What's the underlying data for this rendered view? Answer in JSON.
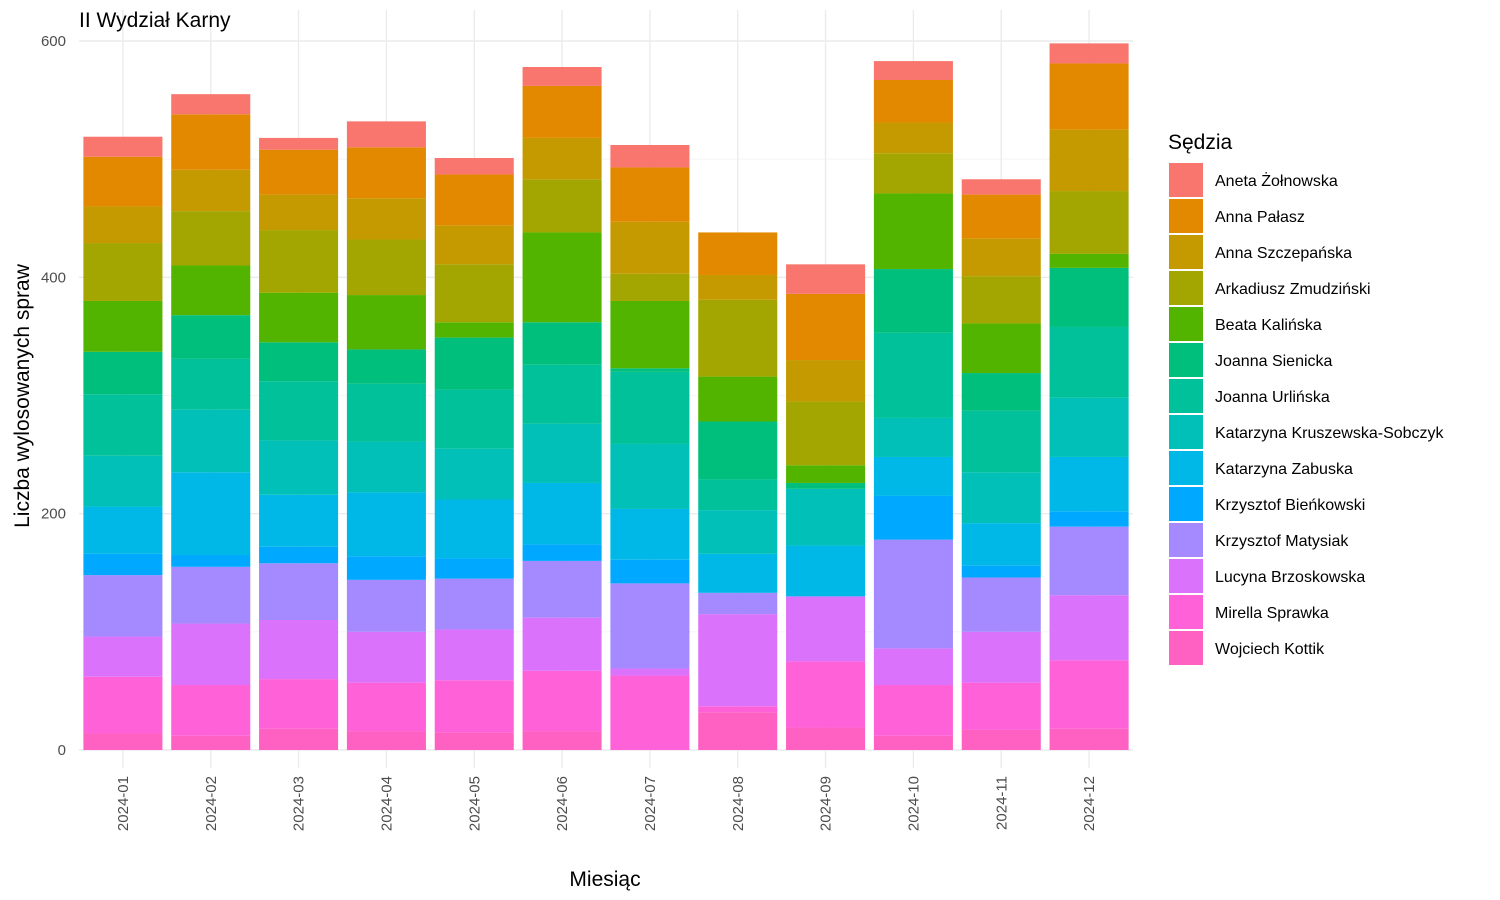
{
  "chart_data": {
    "type": "bar",
    "stacked": true,
    "title": "II Wydział Karny",
    "xlabel": "Miesiąc",
    "ylabel": "Liczba wylosowanych spraw",
    "ylim": [
      0,
      600
    ],
    "yticks": [
      0,
      200,
      400,
      600
    ],
    "grid": true,
    "legend_title": "Sędzia",
    "legend_position": "right",
    "categories": [
      "2024-01",
      "2024-02",
      "2024-03",
      "2024-04",
      "2024-05",
      "2024-06",
      "2024-07",
      "2024-08",
      "2024-09",
      "2024-10",
      "2024-11",
      "2024-12"
    ],
    "series": [
      {
        "name": "Wojciech Kottik",
        "color": "#FF61C3",
        "values": [
          14,
          12,
          18,
          16,
          15,
          16,
          0,
          32,
          19,
          12,
          17,
          18
        ]
      },
      {
        "name": "Mirella Sprawka",
        "color": "#FF61D8",
        "values": [
          48,
          43,
          42,
          41,
          44,
          51,
          63,
          5,
          56,
          43,
          40,
          58
        ]
      },
      {
        "name": "Lucyna Brzoskowska",
        "color": "#DB72FB",
        "values": [
          34,
          52,
          50,
          43,
          43,
          45,
          6,
          78,
          55,
          31,
          43,
          55
        ]
      },
      {
        "name": "Krzysztof Matysiak",
        "color": "#A58AFF",
        "values": [
          52,
          48,
          48,
          44,
          43,
          48,
          72,
          18,
          0,
          92,
          46,
          58
        ]
      },
      {
        "name": "Krzysztof Bieńkowski",
        "color": "#00A9FF",
        "values": [
          18,
          10,
          14,
          20,
          17,
          14,
          20,
          0,
          0,
          37,
          10,
          13
        ]
      },
      {
        "name": "Katarzyna Zabuska",
        "color": "#00B8E7",
        "values": [
          40,
          70,
          44,
          54,
          50,
          52,
          43,
          33,
          43,
          33,
          36,
          46
        ]
      },
      {
        "name": "Katarzyna Kruszewska-Sobczyk",
        "color": "#00C0B8",
        "values": [
          43,
          53,
          46,
          43,
          43,
          50,
          55,
          37,
          48,
          33,
          43,
          50
        ]
      },
      {
        "name": "Joanna Urlińska",
        "color": "#00C19A",
        "values": [
          52,
          43,
          50,
          49,
          50,
          50,
          61,
          26,
          0,
          72,
          52,
          60
        ]
      },
      {
        "name": "Joanna Sienicka",
        "color": "#00BF7D",
        "values": [
          36,
          37,
          33,
          29,
          44,
          36,
          3,
          49,
          5,
          54,
          32,
          50
        ]
      },
      {
        "name": "Beata Kalińska",
        "color": "#53B400",
        "values": [
          43,
          42,
          42,
          46,
          13,
          76,
          57,
          38,
          15,
          64,
          42,
          12
        ]
      },
      {
        "name": "Arkadiusz Zmudziński",
        "color": "#A3A500",
        "values": [
          49,
          46,
          53,
          47,
          49,
          45,
          23,
          65,
          54,
          34,
          40,
          53
        ]
      },
      {
        "name": "Anna Szczepańska",
        "color": "#C49A00",
        "values": [
          31,
          35,
          30,
          35,
          33,
          35,
          44,
          21,
          35,
          26,
          32,
          52
        ]
      },
      {
        "name": "Anna Pałasz",
        "color": "#E38900",
        "values": [
          42,
          47,
          38,
          43,
          43,
          44,
          46,
          36,
          56,
          36,
          37,
          56
        ]
      },
      {
        "name": "Aneta Żołnowska",
        "color": "#F8766D",
        "values": [
          17,
          17,
          10,
          22,
          14,
          16,
          19,
          0,
          25,
          16,
          13,
          17
        ]
      }
    ]
  }
}
